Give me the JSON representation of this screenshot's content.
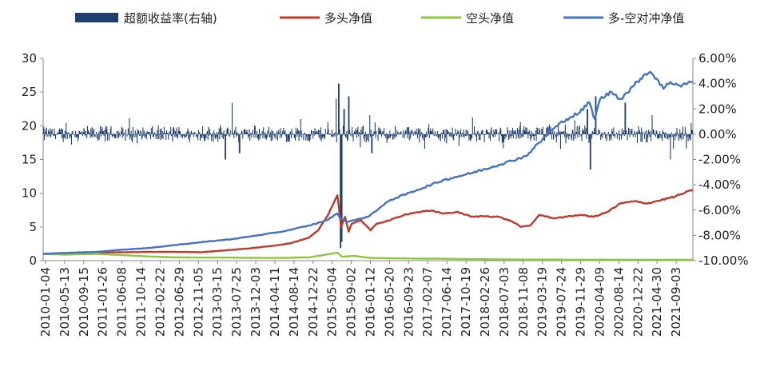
{
  "chart_data": {
    "type": "line",
    "title": "",
    "legend": {
      "placement": "top",
      "entries": [
        {
          "name": "超额收益率(右轴)",
          "color": "#1f3f73",
          "style": "bar"
        },
        {
          "name": "多头净值",
          "color": "#c0392b",
          "style": "line"
        },
        {
          "name": "空头净值",
          "color": "#8dc63f",
          "style": "line"
        },
        {
          "name": "多-空对冲净值",
          "color": "#4472c4",
          "style": "line"
        }
      ]
    },
    "x_axis": {
      "type": "date",
      "range": [
        "2010-01-04",
        "2021-12-31"
      ],
      "tick_labels": [
        "2010-01-04",
        "2010-05-13",
        "2010-09-15",
        "2011-01-26",
        "2011-06-08",
        "2011-10-14",
        "2012-02-22",
        "2012-06-29",
        "2012-11-05",
        "2013-03-15",
        "2013-07-25",
        "2013-12-03",
        "2014-04-11",
        "2014-08-14",
        "2014-12-22",
        "2015-05-04",
        "2015-09-02",
        "2016-01-12",
        "2016-05-20",
        "2016-09-23",
        "2017-02-07",
        "2017-06-14",
        "2017-10-19",
        "2018-02-26",
        "2018-07-03",
        "2018-11-08",
        "2019-03-19",
        "2019-07-24",
        "2019-11-29",
        "2020-04-09",
        "2020-08-14",
        "2020-12-22",
        "2021-04-30",
        "2021-09-03"
      ]
    },
    "y_left": {
      "min": 0,
      "max": 30,
      "tick_labels": [
        "0",
        "5",
        "10",
        "15",
        "20",
        "25",
        "30"
      ]
    },
    "y_right": {
      "min": -10,
      "max": 6,
      "tick_labels": [
        "-10.00%",
        "-8.00%",
        "-6.00%",
        "-4.00%",
        "-2.00%",
        "0.00%",
        "2.00%",
        "4.00%",
        "6.00%"
      ]
    },
    "series": [
      {
        "name": "多头净值",
        "axis": "left",
        "color": "#c0392b",
        "points": [
          [
            "2010-01-04",
            1.0
          ],
          [
            "2010-06-01",
            1.05
          ],
          [
            "2011-01-01",
            1.2
          ],
          [
            "2011-06-01",
            1.25
          ],
          [
            "2012-01-01",
            1.3
          ],
          [
            "2012-06-01",
            1.3
          ],
          [
            "2012-12-01",
            1.25
          ],
          [
            "2013-03-01",
            1.4
          ],
          [
            "2013-07-01",
            1.6
          ],
          [
            "2013-12-01",
            1.9
          ],
          [
            "2014-04-01",
            2.2
          ],
          [
            "2014-08-01",
            2.6
          ],
          [
            "2014-12-01",
            3.4
          ],
          [
            "2015-02-01",
            4.5
          ],
          [
            "2015-04-01",
            6.5
          ],
          [
            "2015-05-15",
            8.5
          ],
          [
            "2015-06-10",
            9.7
          ],
          [
            "2015-06-20",
            8.0
          ],
          [
            "2015-07-05",
            5.0
          ],
          [
            "2015-08-01",
            6.5
          ],
          [
            "2015-08-25",
            4.3
          ],
          [
            "2015-09-15",
            5.5
          ],
          [
            "2015-11-15",
            6.0
          ],
          [
            "2016-01-20",
            4.5
          ],
          [
            "2016-03-01",
            5.5
          ],
          [
            "2016-06-01",
            6.0
          ],
          [
            "2016-09-01",
            6.8
          ],
          [
            "2016-12-01",
            7.2
          ],
          [
            "2017-03-01",
            7.4
          ],
          [
            "2017-06-01",
            7.0
          ],
          [
            "2017-09-01",
            7.2
          ],
          [
            "2017-12-01",
            6.5
          ],
          [
            "2018-03-01",
            6.6
          ],
          [
            "2018-06-01",
            6.5
          ],
          [
            "2018-09-01",
            5.8
          ],
          [
            "2018-11-01",
            5.0
          ],
          [
            "2019-01-01",
            5.2
          ],
          [
            "2019-03-01",
            6.8
          ],
          [
            "2019-06-01",
            6.3
          ],
          [
            "2019-09-01",
            6.5
          ],
          [
            "2019-12-01",
            6.8
          ],
          [
            "2020-03-01",
            6.5
          ],
          [
            "2020-06-01",
            7.2
          ],
          [
            "2020-09-01",
            8.5
          ],
          [
            "2020-12-01",
            8.8
          ],
          [
            "2021-03-01",
            8.5
          ],
          [
            "2021-06-01",
            9.0
          ],
          [
            "2021-09-01",
            9.5
          ],
          [
            "2021-12-31",
            10.5
          ]
        ]
      },
      {
        "name": "空头净值",
        "axis": "left",
        "color": "#8dc63f",
        "points": [
          [
            "2010-01-04",
            1.0
          ],
          [
            "2010-06-01",
            0.9
          ],
          [
            "2011-01-01",
            1.0
          ],
          [
            "2011-06-01",
            0.85
          ],
          [
            "2012-01-01",
            0.6
          ],
          [
            "2012-06-01",
            0.5
          ],
          [
            "2013-01-01",
            0.45
          ],
          [
            "2013-07-01",
            0.45
          ],
          [
            "2014-01-01",
            0.4
          ],
          [
            "2014-06-01",
            0.4
          ],
          [
            "2014-12-01",
            0.5
          ],
          [
            "2015-03-01",
            0.8
          ],
          [
            "2015-06-10",
            1.2
          ],
          [
            "2015-07-10",
            0.6
          ],
          [
            "2015-10-01",
            0.7
          ],
          [
            "2016-01-20",
            0.4
          ],
          [
            "2016-06-01",
            0.35
          ],
          [
            "2017-01-01",
            0.3
          ],
          [
            "2017-06-01",
            0.28
          ],
          [
            "2018-01-01",
            0.22
          ],
          [
            "2018-07-01",
            0.18
          ],
          [
            "2019-01-01",
            0.15
          ],
          [
            "2019-07-01",
            0.15
          ],
          [
            "2020-01-01",
            0.14
          ],
          [
            "2020-07-01",
            0.14
          ],
          [
            "2021-01-01",
            0.13
          ],
          [
            "2021-12-31",
            0.12
          ]
        ]
      },
      {
        "name": "多-空对冲净值",
        "axis": "left",
        "color": "#4472c4",
        "points": [
          [
            "2010-01-04",
            1.0
          ],
          [
            "2010-06-01",
            1.15
          ],
          [
            "2011-01-01",
            1.3
          ],
          [
            "2011-06-01",
            1.6
          ],
          [
            "2012-01-01",
            1.9
          ],
          [
            "2012-06-01",
            2.3
          ],
          [
            "2013-01-01",
            2.8
          ],
          [
            "2013-07-01",
            3.2
          ],
          [
            "2014-01-01",
            3.8
          ],
          [
            "2014-06-01",
            4.3
          ],
          [
            "2014-12-01",
            5.2
          ],
          [
            "2015-04-01",
            6.0
          ],
          [
            "2015-06-10",
            7.0
          ],
          [
            "2015-07-05",
            6.2
          ],
          [
            "2015-08-15",
            5.8
          ],
          [
            "2015-10-01",
            6.0
          ],
          [
            "2016-01-01",
            6.5
          ],
          [
            "2016-06-01",
            9.0
          ],
          [
            "2016-12-01",
            10.5
          ],
          [
            "2017-06-01",
            12.0
          ],
          [
            "2017-12-01",
            13.0
          ],
          [
            "2018-06-01",
            14.2
          ],
          [
            "2018-12-01",
            15.5
          ],
          [
            "2019-03-01",
            17.5
          ],
          [
            "2019-06-01",
            19.5
          ],
          [
            "2019-09-01",
            21.0
          ],
          [
            "2019-12-01",
            22.0
          ],
          [
            "2020-02-01",
            23.5
          ],
          [
            "2020-03-10",
            21.0
          ],
          [
            "2020-04-15",
            24.0
          ],
          [
            "2020-07-01",
            25.0
          ],
          [
            "2020-09-01",
            24.0
          ],
          [
            "2020-12-01",
            26.0
          ],
          [
            "2021-02-01",
            27.5
          ],
          [
            "2021-03-20",
            28.0
          ],
          [
            "2021-05-01",
            27.0
          ],
          [
            "2021-06-15",
            25.5
          ],
          [
            "2021-08-01",
            26.5
          ],
          [
            "2021-10-01",
            26.0
          ],
          [
            "2021-12-31",
            26.5
          ]
        ]
      }
    ],
    "excess_return_series": {
      "name": "超额收益率(右轴)",
      "axis": "right",
      "color": "#1f3f73",
      "unit": "%",
      "typical_amplitude": 0.6,
      "extremes": [
        [
          "2013-05-15",
          -2.0
        ],
        [
          "2013-07-01",
          2.5
        ],
        [
          "2013-08-20",
          -1.5
        ],
        [
          "2015-06-01",
          2.8
        ],
        [
          "2015-06-20",
          4.0
        ],
        [
          "2015-07-01",
          -9.0
        ],
        [
          "2015-07-10",
          -8.5
        ],
        [
          "2015-07-25",
          2.0
        ],
        [
          "2015-08-25",
          3.0
        ],
        [
          "2016-01-15",
          1.5
        ],
        [
          "2016-01-28",
          -1.5
        ],
        [
          "2020-01-20",
          2.0
        ],
        [
          "2020-02-10",
          -2.8
        ],
        [
          "2020-03-15",
          3.0
        ],
        [
          "2020-10-01",
          2.5
        ],
        [
          "2021-04-01",
          1.5
        ],
        [
          "2021-08-01",
          -2.0
        ]
      ]
    }
  }
}
